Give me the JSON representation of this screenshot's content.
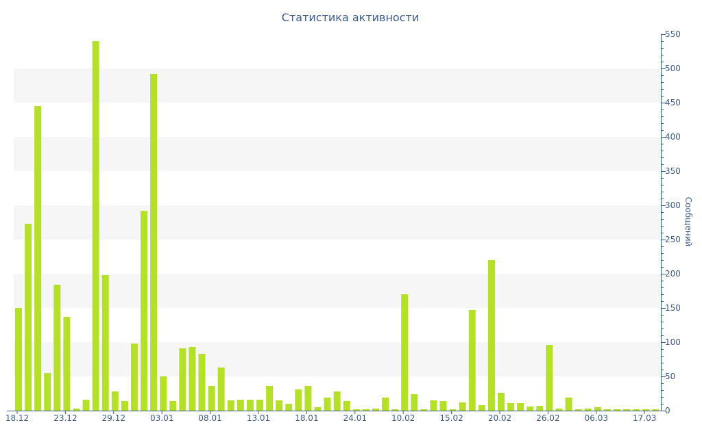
{
  "chart_data": {
    "type": "bar",
    "title": "Статистика активности",
    "ylabel": "Сообщений",
    "ylim": [
      0,
      550
    ],
    "y_ticks": [
      0,
      50,
      100,
      150,
      200,
      250,
      300,
      350,
      400,
      450,
      500,
      550
    ],
    "y_axis_position": "right",
    "x_tick_labels": [
      {
        "label": "18.12",
        "index": 0
      },
      {
        "label": "23.12",
        "index": 5
      },
      {
        "label": "29.12",
        "index": 10
      },
      {
        "label": "03.01",
        "index": 15
      },
      {
        "label": "08.01",
        "index": 20
      },
      {
        "label": "13.01",
        "index": 25
      },
      {
        "label": "18.01",
        "index": 30
      },
      {
        "label": "24.01",
        "index": 35
      },
      {
        "label": "10.02",
        "index": 40
      },
      {
        "label": "15.02",
        "index": 45
      },
      {
        "label": "20.02",
        "index": 50
      },
      {
        "label": "26.02",
        "index": 55
      },
      {
        "label": "06.03",
        "index": 60
      },
      {
        "label": "17.03",
        "index": 65
      }
    ],
    "values": [
      150,
      273,
      445,
      55,
      184,
      137,
      3,
      16,
      540,
      198,
      28,
      14,
      98,
      292,
      492,
      50,
      14,
      91,
      93,
      83,
      36,
      63,
      15,
      16,
      16,
      16,
      36,
      15,
      10,
      31,
      36,
      5,
      19,
      28,
      14,
      2,
      2,
      3,
      19,
      2,
      170,
      24,
      2,
      15,
      14,
      2,
      12,
      147,
      8,
      220,
      26,
      11,
      11,
      6,
      7,
      96,
      3,
      19,
      2,
      3,
      5,
      2,
      2,
      2,
      2,
      2,
      2
    ],
    "grid": "alternating horizontal bands",
    "legend": "none"
  },
  "colors": {
    "bar": "#b5e02a",
    "axis_text": "#3d5a8a",
    "band": "#f6f6f6"
  }
}
